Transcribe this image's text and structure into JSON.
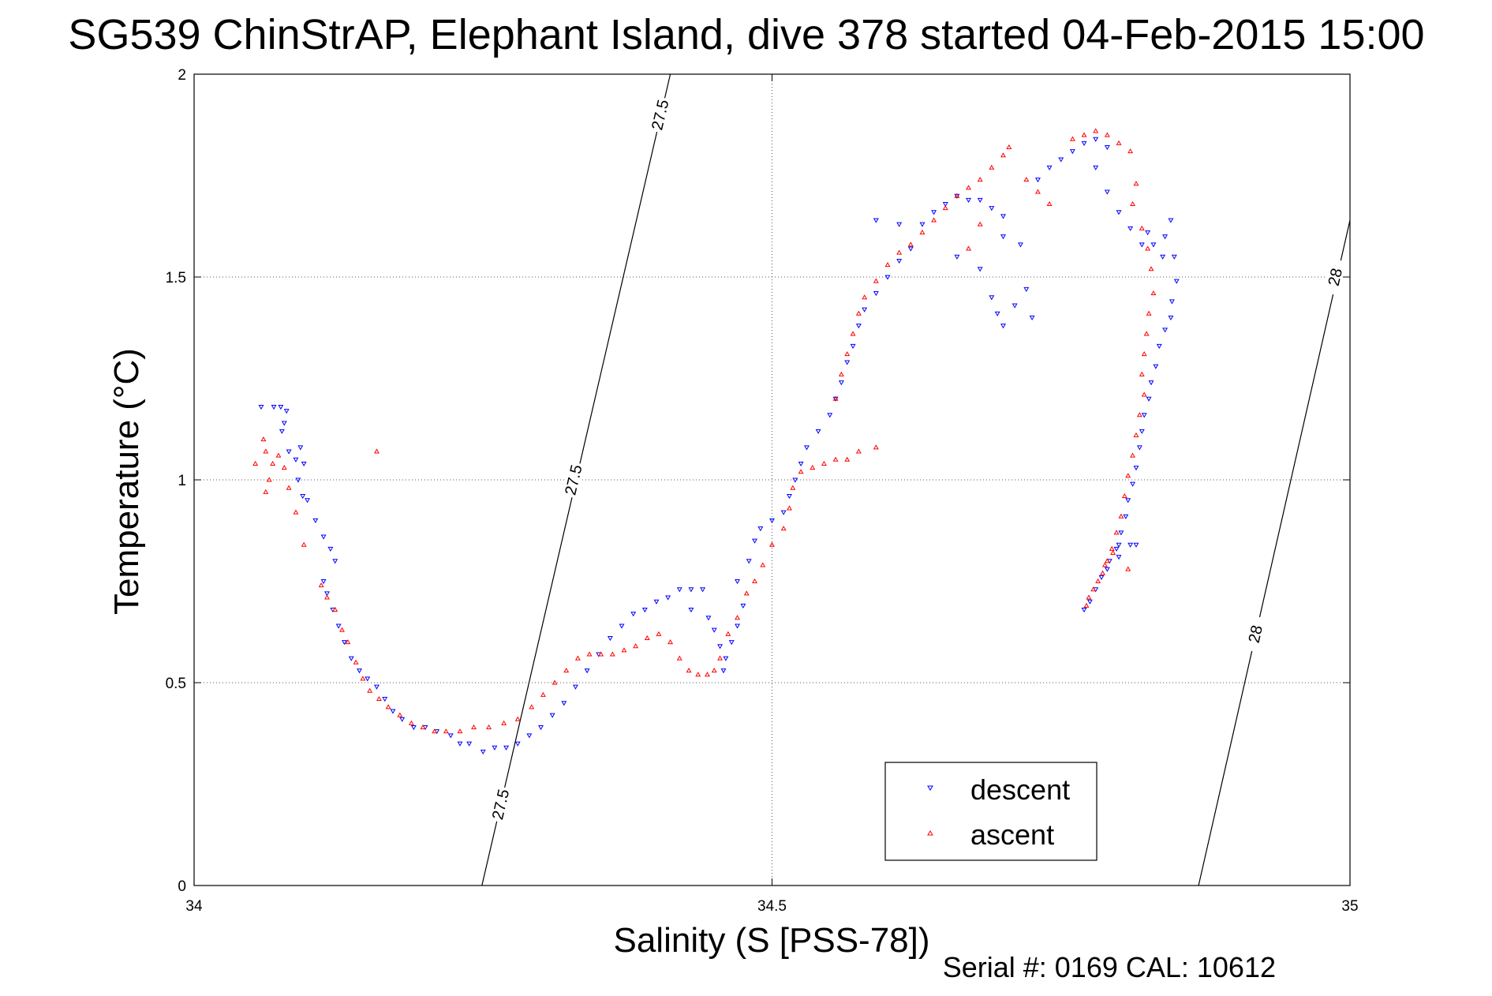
{
  "chart_data": {
    "type": "scatter",
    "title": "SG539 ChinStrAP, Elephant Island, dive 378 started 04-Feb-2015 15:00",
    "xlabel": "Salinity (S [PSS-78])",
    "ylabel": "Temperature (°C)",
    "xlim": [
      34,
      35
    ],
    "ylim": [
      0,
      2
    ],
    "xticks": [
      "34",
      "34.5",
      "35"
    ],
    "yticks": [
      "0",
      "0.5",
      "1",
      "1.5",
      "2"
    ],
    "grid": true,
    "legend_position": "bottom-right",
    "footer": "Serial #: 0169 CAL: 10612",
    "contours": [
      {
        "label": "27.5",
        "points": [
          [
            34.249,
            0.0
          ],
          [
            34.412,
            2.0
          ]
        ],
        "label_positions": [
          [
            34.265,
            0.2
          ],
          [
            34.328,
            1.0
          ],
          [
            34.403,
            1.9
          ]
        ]
      },
      {
        "label": "28",
        "points": [
          [
            34.869,
            0.0
          ],
          [
            35.0,
            1.64
          ]
        ],
        "label_positions": [
          [
            34.918,
            0.62
          ],
          [
            34.987,
            1.5
          ]
        ]
      }
    ],
    "series": [
      {
        "name": "descent",
        "color": "#0000ff",
        "marker": "triangle-down",
        "points": [
          [
            34.058,
            1.18
          ],
          [
            34.069,
            1.18
          ],
          [
            34.075,
            1.18
          ],
          [
            34.08,
            1.17
          ],
          [
            34.078,
            1.14
          ],
          [
            34.076,
            1.12
          ],
          [
            34.082,
            1.07
          ],
          [
            34.088,
            1.05
          ],
          [
            34.092,
            1.08
          ],
          [
            34.095,
            1.04
          ],
          [
            34.09,
            1.0
          ],
          [
            34.094,
            0.96
          ],
          [
            34.098,
            0.95
          ],
          [
            34.105,
            0.9
          ],
          [
            34.112,
            0.86
          ],
          [
            34.118,
            0.83
          ],
          [
            34.122,
            0.8
          ],
          [
            34.112,
            0.75
          ],
          [
            34.115,
            0.72
          ],
          [
            34.12,
            0.68
          ],
          [
            34.125,
            0.64
          ],
          [
            34.13,
            0.6
          ],
          [
            34.136,
            0.56
          ],
          [
            34.143,
            0.53
          ],
          [
            34.15,
            0.51
          ],
          [
            34.158,
            0.49
          ],
          [
            34.165,
            0.46
          ],
          [
            34.172,
            0.43
          ],
          [
            34.18,
            0.41
          ],
          [
            34.19,
            0.39
          ],
          [
            34.2,
            0.39
          ],
          [
            34.21,
            0.38
          ],
          [
            34.222,
            0.37
          ],
          [
            34.23,
            0.35
          ],
          [
            34.238,
            0.35
          ],
          [
            34.25,
            0.33
          ],
          [
            34.26,
            0.34
          ],
          [
            34.27,
            0.34
          ],
          [
            34.28,
            0.35
          ],
          [
            34.29,
            0.37
          ],
          [
            34.3,
            0.39
          ],
          [
            34.31,
            0.42
          ],
          [
            34.32,
            0.45
          ],
          [
            34.33,
            0.49
          ],
          [
            34.34,
            0.53
          ],
          [
            34.35,
            0.57
          ],
          [
            34.36,
            0.61
          ],
          [
            34.37,
            0.64
          ],
          [
            34.38,
            0.67
          ],
          [
            34.39,
            0.68
          ],
          [
            34.4,
            0.7
          ],
          [
            34.41,
            0.71
          ],
          [
            34.42,
            0.73
          ],
          [
            34.43,
            0.73
          ],
          [
            34.44,
            0.73
          ],
          [
            34.43,
            0.68
          ],
          [
            34.445,
            0.66
          ],
          [
            34.45,
            0.63
          ],
          [
            34.455,
            0.59
          ],
          [
            34.46,
            0.56
          ],
          [
            34.458,
            0.53
          ],
          [
            34.465,
            0.6
          ],
          [
            34.47,
            0.64
          ],
          [
            34.475,
            0.69
          ],
          [
            34.47,
            0.75
          ],
          [
            34.48,
            0.8
          ],
          [
            34.485,
            0.85
          ],
          [
            34.49,
            0.88
          ],
          [
            34.5,
            0.9
          ],
          [
            34.51,
            0.92
          ],
          [
            34.515,
            0.96
          ],
          [
            34.52,
            1.0
          ],
          [
            34.525,
            1.04
          ],
          [
            34.53,
            1.08
          ],
          [
            34.54,
            1.12
          ],
          [
            34.55,
            1.16
          ],
          [
            34.555,
            1.2
          ],
          [
            34.56,
            1.24
          ],
          [
            34.565,
            1.29
          ],
          [
            34.57,
            1.33
          ],
          [
            34.575,
            1.38
          ],
          [
            34.58,
            1.42
          ],
          [
            34.59,
            1.46
          ],
          [
            34.6,
            1.5
          ],
          [
            34.61,
            1.54
          ],
          [
            34.62,
            1.57
          ],
          [
            34.61,
            1.63
          ],
          [
            34.59,
            1.64
          ],
          [
            34.63,
            1.63
          ],
          [
            34.64,
            1.66
          ],
          [
            34.65,
            1.68
          ],
          [
            34.66,
            1.7
          ],
          [
            34.67,
            1.69
          ],
          [
            34.68,
            1.69
          ],
          [
            34.69,
            1.67
          ],
          [
            34.66,
            1.55
          ],
          [
            34.68,
            1.52
          ],
          [
            34.69,
            1.45
          ],
          [
            34.695,
            1.41
          ],
          [
            34.7,
            1.38
          ],
          [
            34.71,
            1.43
          ],
          [
            34.72,
            1.47
          ],
          [
            34.725,
            1.4
          ],
          [
            34.715,
            1.58
          ],
          [
            34.7,
            1.6
          ],
          [
            34.7,
            1.65
          ],
          [
            34.73,
            1.74
          ],
          [
            34.74,
            1.77
          ],
          [
            34.75,
            1.79
          ],
          [
            34.76,
            1.81
          ],
          [
            34.77,
            1.83
          ],
          [
            34.78,
            1.84
          ],
          [
            34.79,
            1.82
          ],
          [
            34.78,
            1.77
          ],
          [
            34.79,
            1.71
          ],
          [
            34.8,
            1.66
          ],
          [
            34.81,
            1.62
          ],
          [
            34.82,
            1.58
          ],
          [
            34.825,
            1.61
          ],
          [
            34.83,
            1.58
          ],
          [
            34.838,
            1.55
          ],
          [
            34.84,
            1.6
          ],
          [
            34.845,
            1.64
          ],
          [
            34.848,
            1.55
          ],
          [
            34.85,
            1.49
          ],
          [
            34.846,
            1.44
          ],
          [
            34.845,
            1.4
          ],
          [
            34.84,
            1.37
          ],
          [
            34.835,
            1.33
          ],
          [
            34.832,
            1.28
          ],
          [
            34.828,
            1.24
          ],
          [
            34.826,
            1.2
          ],
          [
            34.822,
            1.16
          ],
          [
            34.82,
            1.12
          ],
          [
            34.818,
            1.08
          ],
          [
            34.815,
            1.03
          ],
          [
            34.812,
            0.99
          ],
          [
            34.808,
            0.95
          ],
          [
            34.806,
            0.91
          ],
          [
            34.802,
            0.87
          ],
          [
            34.798,
            0.83
          ],
          [
            34.792,
            0.8
          ],
          [
            34.785,
            0.76
          ],
          [
            34.78,
            0.73
          ],
          [
            34.775,
            0.7
          ],
          [
            34.77,
            0.68
          ],
          [
            34.79,
            0.78
          ],
          [
            34.8,
            0.81
          ],
          [
            34.81,
            0.84
          ],
          [
            34.815,
            0.84
          ],
          [
            34.8,
            0.84
          ]
        ]
      },
      {
        "name": "ascent",
        "color": "#ff0000",
        "marker": "triangle-up",
        "points": [
          [
            34.053,
            1.04
          ],
          [
            34.06,
            1.1
          ],
          [
            34.062,
            1.07
          ],
          [
            34.068,
            1.04
          ],
          [
            34.073,
            1.06
          ],
          [
            34.078,
            1.03
          ],
          [
            34.065,
            1.0
          ],
          [
            34.062,
            0.97
          ],
          [
            34.082,
            0.98
          ],
          [
            34.088,
            0.92
          ],
          [
            34.095,
            0.84
          ],
          [
            34.158,
            1.07
          ],
          [
            34.11,
            0.74
          ],
          [
            34.115,
            0.71
          ],
          [
            34.122,
            0.68
          ],
          [
            34.128,
            0.63
          ],
          [
            34.133,
            0.6
          ],
          [
            34.14,
            0.55
          ],
          [
            34.146,
            0.51
          ],
          [
            34.152,
            0.48
          ],
          [
            34.16,
            0.46
          ],
          [
            34.168,
            0.44
          ],
          [
            34.178,
            0.42
          ],
          [
            34.188,
            0.4
          ],
          [
            34.198,
            0.39
          ],
          [
            34.208,
            0.38
          ],
          [
            34.218,
            0.38
          ],
          [
            34.23,
            0.38
          ],
          [
            34.242,
            0.39
          ],
          [
            34.255,
            0.39
          ],
          [
            34.268,
            0.4
          ],
          [
            34.28,
            0.41
          ],
          [
            34.292,
            0.44
          ],
          [
            34.302,
            0.47
          ],
          [
            34.312,
            0.5
          ],
          [
            34.322,
            0.53
          ],
          [
            34.332,
            0.56
          ],
          [
            34.342,
            0.57
          ],
          [
            34.352,
            0.57
          ],
          [
            34.362,
            0.57
          ],
          [
            34.372,
            0.58
          ],
          [
            34.382,
            0.59
          ],
          [
            34.392,
            0.61
          ],
          [
            34.402,
            0.62
          ],
          [
            34.412,
            0.6
          ],
          [
            34.42,
            0.56
          ],
          [
            34.428,
            0.53
          ],
          [
            34.436,
            0.52
          ],
          [
            34.444,
            0.52
          ],
          [
            34.45,
            0.53
          ],
          [
            34.455,
            0.56
          ],
          [
            34.462,
            0.62
          ],
          [
            34.47,
            0.66
          ],
          [
            34.478,
            0.72
          ],
          [
            34.485,
            0.75
          ],
          [
            34.492,
            0.79
          ],
          [
            34.5,
            0.84
          ],
          [
            34.51,
            0.88
          ],
          [
            34.515,
            0.93
          ],
          [
            34.518,
            0.98
          ],
          [
            34.525,
            1.02
          ],
          [
            34.535,
            1.03
          ],
          [
            34.545,
            1.04
          ],
          [
            34.555,
            1.05
          ],
          [
            34.565,
            1.05
          ],
          [
            34.575,
            1.07
          ],
          [
            34.59,
            1.08
          ],
          [
            34.555,
            1.2
          ],
          [
            34.56,
            1.26
          ],
          [
            34.565,
            1.31
          ],
          [
            34.57,
            1.36
          ],
          [
            34.575,
            1.41
          ],
          [
            34.58,
            1.45
          ],
          [
            34.59,
            1.49
          ],
          [
            34.6,
            1.53
          ],
          [
            34.61,
            1.56
          ],
          [
            34.62,
            1.58
          ],
          [
            34.63,
            1.61
          ],
          [
            34.64,
            1.64
          ],
          [
            34.65,
            1.67
          ],
          [
            34.66,
            1.7
          ],
          [
            34.67,
            1.72
          ],
          [
            34.68,
            1.74
          ],
          [
            34.69,
            1.77
          ],
          [
            34.7,
            1.8
          ],
          [
            34.705,
            1.82
          ],
          [
            34.72,
            1.74
          ],
          [
            34.73,
            1.71
          ],
          [
            34.74,
            1.68
          ],
          [
            34.68,
            1.63
          ],
          [
            34.67,
            1.57
          ],
          [
            34.76,
            1.84
          ],
          [
            34.77,
            1.85
          ],
          [
            34.78,
            1.86
          ],
          [
            34.79,
            1.85
          ],
          [
            34.8,
            1.83
          ],
          [
            34.81,
            1.81
          ],
          [
            34.815,
            1.73
          ],
          [
            34.812,
            1.68
          ],
          [
            34.82,
            1.62
          ],
          [
            34.825,
            1.57
          ],
          [
            34.828,
            1.52
          ],
          [
            34.83,
            1.46
          ],
          [
            34.826,
            1.41
          ],
          [
            34.824,
            1.36
          ],
          [
            34.822,
            1.31
          ],
          [
            34.82,
            1.26
          ],
          [
            34.822,
            1.21
          ],
          [
            34.818,
            1.16
          ],
          [
            34.815,
            1.11
          ],
          [
            34.812,
            1.06
          ],
          [
            34.808,
            1.01
          ],
          [
            34.805,
            0.96
          ],
          [
            34.802,
            0.91
          ],
          [
            34.798,
            0.87
          ],
          [
            34.794,
            0.83
          ],
          [
            34.79,
            0.8
          ],
          [
            34.786,
            0.77
          ],
          [
            34.782,
            0.75
          ],
          [
            34.778,
            0.73
          ],
          [
            34.774,
            0.71
          ],
          [
            34.772,
            0.69
          ],
          [
            34.788,
            0.79
          ],
          [
            34.795,
            0.82
          ],
          [
            34.808,
            0.78
          ]
        ]
      }
    ]
  }
}
